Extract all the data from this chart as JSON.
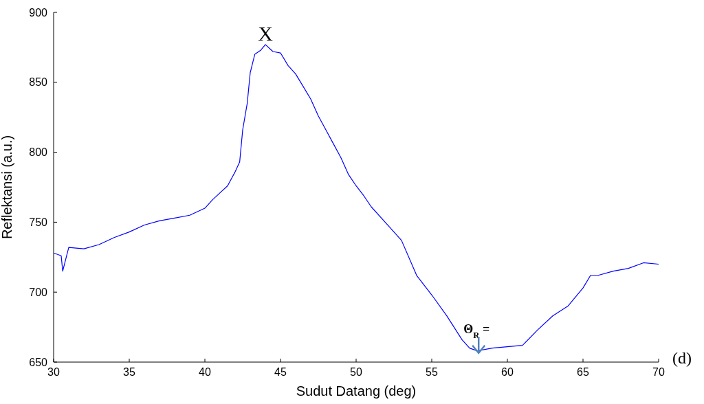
{
  "chart_data": {
    "type": "line",
    "xlabel": "Sudut Datang (deg)",
    "ylabel": "Reflektansi (a.u.)",
    "x": [
      30,
      30.5,
      30.6,
      31,
      32,
      33,
      34,
      35,
      36,
      37,
      38,
      39,
      40,
      40.5,
      41,
      41.5,
      42,
      42.3,
      42.5,
      42.8,
      43,
      43.3,
      43.7,
      44,
      44.5,
      45,
      45.5,
      46,
      46.5,
      47,
      47.5,
      48,
      48.5,
      49,
      49.5,
      50,
      50.5,
      51,
      52,
      53,
      54,
      55,
      56,
      57,
      57.5,
      58,
      59,
      60,
      61,
      62,
      63,
      64,
      65,
      65.5,
      66,
      67,
      68,
      69,
      70
    ],
    "series": [
      {
        "color": "#0000ff",
        "values": [
          728,
          726,
          715,
          732,
          731,
          734,
          739,
          743,
          748,
          751,
          753,
          755,
          760,
          766,
          771,
          776,
          786,
          793,
          816,
          835,
          857,
          870,
          873,
          877,
          872,
          871,
          862,
          856,
          847,
          838,
          826,
          816,
          806,
          796,
          784,
          776,
          769,
          761,
          749,
          737,
          712,
          698,
          683,
          666,
          660,
          658,
          660,
          661,
          662,
          673,
          683,
          690,
          703,
          712,
          712,
          715,
          717,
          721,
          720
        ]
      }
    ],
    "xlim": [
      30,
      70
    ],
    "xticks": [
      30,
      35,
      40,
      45,
      50,
      55,
      60,
      65,
      70
    ],
    "ylim": [
      650,
      900
    ],
    "yticks": [
      650,
      700,
      750,
      800,
      850,
      900
    ],
    "marker": "none",
    "line_style": "solid",
    "annotations": [
      {
        "text": "X",
        "x": 44,
        "y": 877
      },
      {
        "text": "Θ$_{R}$=",
        "x": 58.1,
        "y": 656
      },
      "(d)"
    ]
  }
}
